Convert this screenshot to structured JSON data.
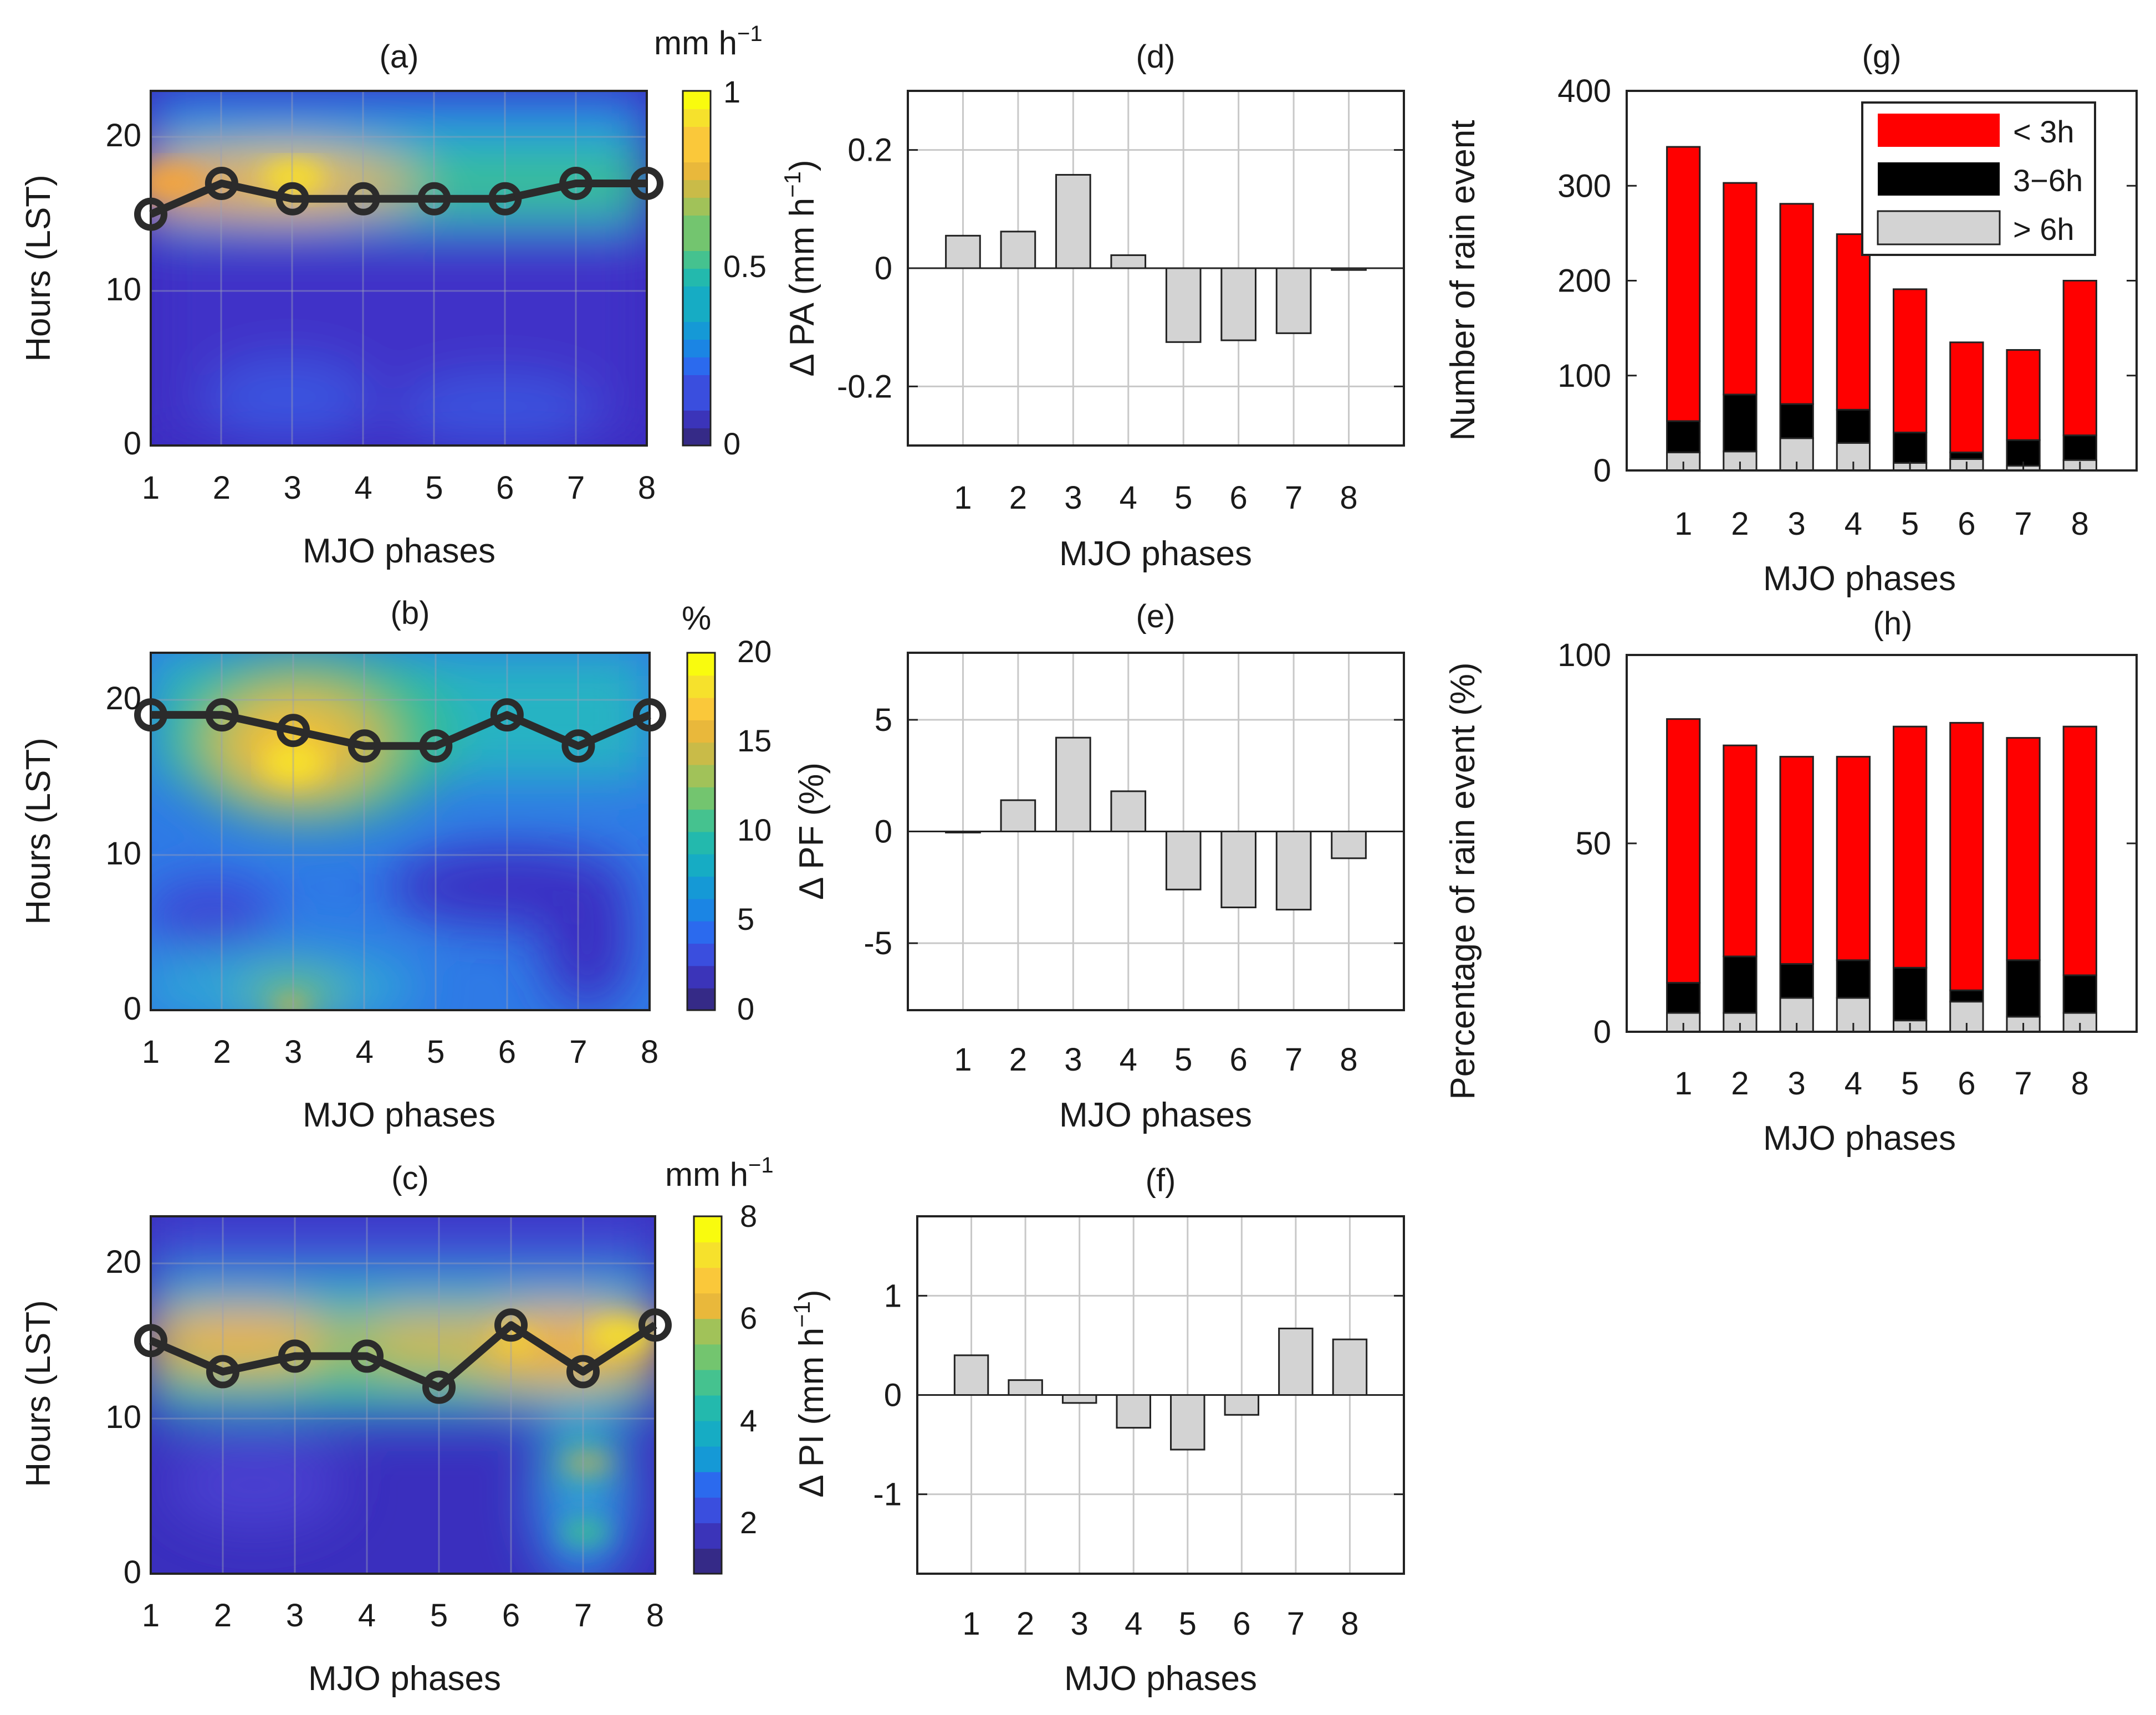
{
  "figure": {
    "xlabel": "MJO phases",
    "phases": [
      "1",
      "2",
      "3",
      "4",
      "5",
      "6",
      "7",
      "8"
    ]
  },
  "chart_data": [
    {
      "id": "a",
      "title": "(a)",
      "type": "heatmap",
      "xlabel": "MJO phases",
      "ylabel": "Hours (LST)",
      "xlim": [
        1,
        8
      ],
      "ylim": [
        0,
        23
      ],
      "yticks": [
        "0",
        "10",
        "20"
      ],
      "colorbar": {
        "label": "mm h",
        "label_exp": "−1",
        "ticks": [
          "0",
          "0.5",
          "1"
        ],
        "min": 0,
        "max": 1
      },
      "peak_hours": [
        15,
        17,
        16,
        16,
        16,
        16,
        17,
        17
      ]
    },
    {
      "id": "b",
      "title": "(b)",
      "type": "heatmap",
      "xlabel": "MJO phases",
      "ylabel": "Hours (LST)",
      "xlim": [
        1,
        8
      ],
      "ylim": [
        0,
        23
      ],
      "yticks": [
        "0",
        "10",
        "20"
      ],
      "colorbar": {
        "label": "%",
        "label_exp": "",
        "ticks": [
          "0",
          "5",
          "10",
          "15",
          "20"
        ],
        "min": 0,
        "max": 20
      },
      "peak_hours": [
        19,
        19,
        18,
        17,
        17,
        19,
        17,
        19
      ]
    },
    {
      "id": "c",
      "title": "(c)",
      "type": "heatmap",
      "xlabel": "MJO phases",
      "ylabel": "Hours (LST)",
      "xlim": [
        1,
        8
      ],
      "ylim": [
        0,
        23
      ],
      "yticks": [
        "0",
        "10",
        "20"
      ],
      "colorbar": {
        "label": "mm h",
        "label_exp": "−1",
        "ticks": [
          "2",
          "4",
          "6",
          "8"
        ],
        "min": 1,
        "max": 8
      },
      "peak_hours": [
        15,
        13,
        14,
        14,
        12,
        16,
        13,
        16
      ]
    },
    {
      "id": "d",
      "title": "(d)",
      "type": "bar",
      "xlabel": "MJO phases",
      "ylabel": "Δ PA (mm h",
      "ylabel_exp": "−1",
      "ylabel_tail": ")",
      "categories": [
        "1",
        "2",
        "3",
        "4",
        "5",
        "6",
        "7",
        "8"
      ],
      "values": [
        0.055,
        0.062,
        0.158,
        0.022,
        -0.125,
        -0.122,
        -0.11,
        -0.003
      ],
      "ylim": [
        -0.3,
        0.3
      ],
      "yticks": [
        -0.2,
        0,
        0.2
      ],
      "ytick_labels": [
        "-0.2",
        "0",
        "0.2"
      ]
    },
    {
      "id": "e",
      "title": "(e)",
      "type": "bar",
      "xlabel": "MJO phases",
      "ylabel": "Δ PF (%)",
      "categories": [
        "1",
        "2",
        "3",
        "4",
        "5",
        "6",
        "7",
        "8"
      ],
      "values": [
        -0.05,
        1.4,
        4.2,
        1.8,
        -2.6,
        -3.4,
        -3.5,
        -1.2
      ],
      "ylim": [
        -8,
        8
      ],
      "yticks": [
        -5,
        0,
        5
      ],
      "ytick_labels": [
        "-5",
        "0",
        "5"
      ]
    },
    {
      "id": "f",
      "title": "(f)",
      "type": "bar",
      "xlabel": "MJO phases",
      "ylabel": "Δ PI (mm h",
      "ylabel_exp": "−1",
      "ylabel_tail": ")",
      "categories": [
        "1",
        "2",
        "3",
        "4",
        "5",
        "6",
        "7",
        "8"
      ],
      "values": [
        0.4,
        0.15,
        -0.08,
        -0.33,
        -0.55,
        -0.2,
        0.67,
        0.56
      ],
      "ylim": [
        -1.8,
        1.8
      ],
      "yticks": [
        -1,
        0,
        1
      ],
      "ytick_labels": [
        "-1",
        "0",
        "1"
      ]
    },
    {
      "id": "g",
      "title": "(g)",
      "type": "stacked-bar",
      "xlabel": "MJO phases",
      "ylabel": "Number of rain event",
      "categories": [
        "1",
        "2",
        "3",
        "4",
        "5",
        "6",
        "7",
        "8"
      ],
      "ylim": [
        0,
        400
      ],
      "yticks": [
        0,
        100,
        200,
        300,
        400
      ],
      "ytick_labels": [
        "0",
        "100",
        "200",
        "300",
        "400"
      ],
      "legend_position": "top-right",
      "series": [
        {
          "name": "> 6h",
          "color": "#d3d3d3",
          "values": [
            19,
            20,
            34,
            29,
            8,
            12,
            5,
            11
          ]
        },
        {
          "name": "3−6h",
          "color": "#000000",
          "values": [
            33,
            60,
            36,
            35,
            32,
            7,
            27,
            26
          ]
        },
        {
          "name": "< 3h",
          "color": "#ff0000",
          "values": [
            289,
            223,
            211,
            185,
            151,
            116,
            95,
            163
          ]
        }
      ]
    },
    {
      "id": "h",
      "title": "(h)",
      "type": "stacked-bar",
      "xlabel": "MJO phases",
      "ylabel": "Percentage of rain event (%)",
      "categories": [
        "1",
        "2",
        "3",
        "4",
        "5",
        "6",
        "7",
        "8"
      ],
      "ylim": [
        0,
        100
      ],
      "yticks": [
        0,
        50,
        100
      ],
      "ytick_labels": [
        "0",
        "50",
        "100"
      ],
      "series": [
        {
          "name": "> 6h",
          "color": "#d3d3d3",
          "values": [
            5,
            5,
            9,
            9,
            3,
            8,
            4,
            5
          ]
        },
        {
          "name": "3−6h",
          "color": "#000000",
          "values": [
            8,
            15,
            9,
            10,
            14,
            3,
            15,
            10
          ]
        },
        {
          "name": "< 3h",
          "color": "#ff0000",
          "values": [
            70,
            56,
            55,
            54,
            64,
            71,
            59,
            66
          ]
        }
      ]
    }
  ]
}
